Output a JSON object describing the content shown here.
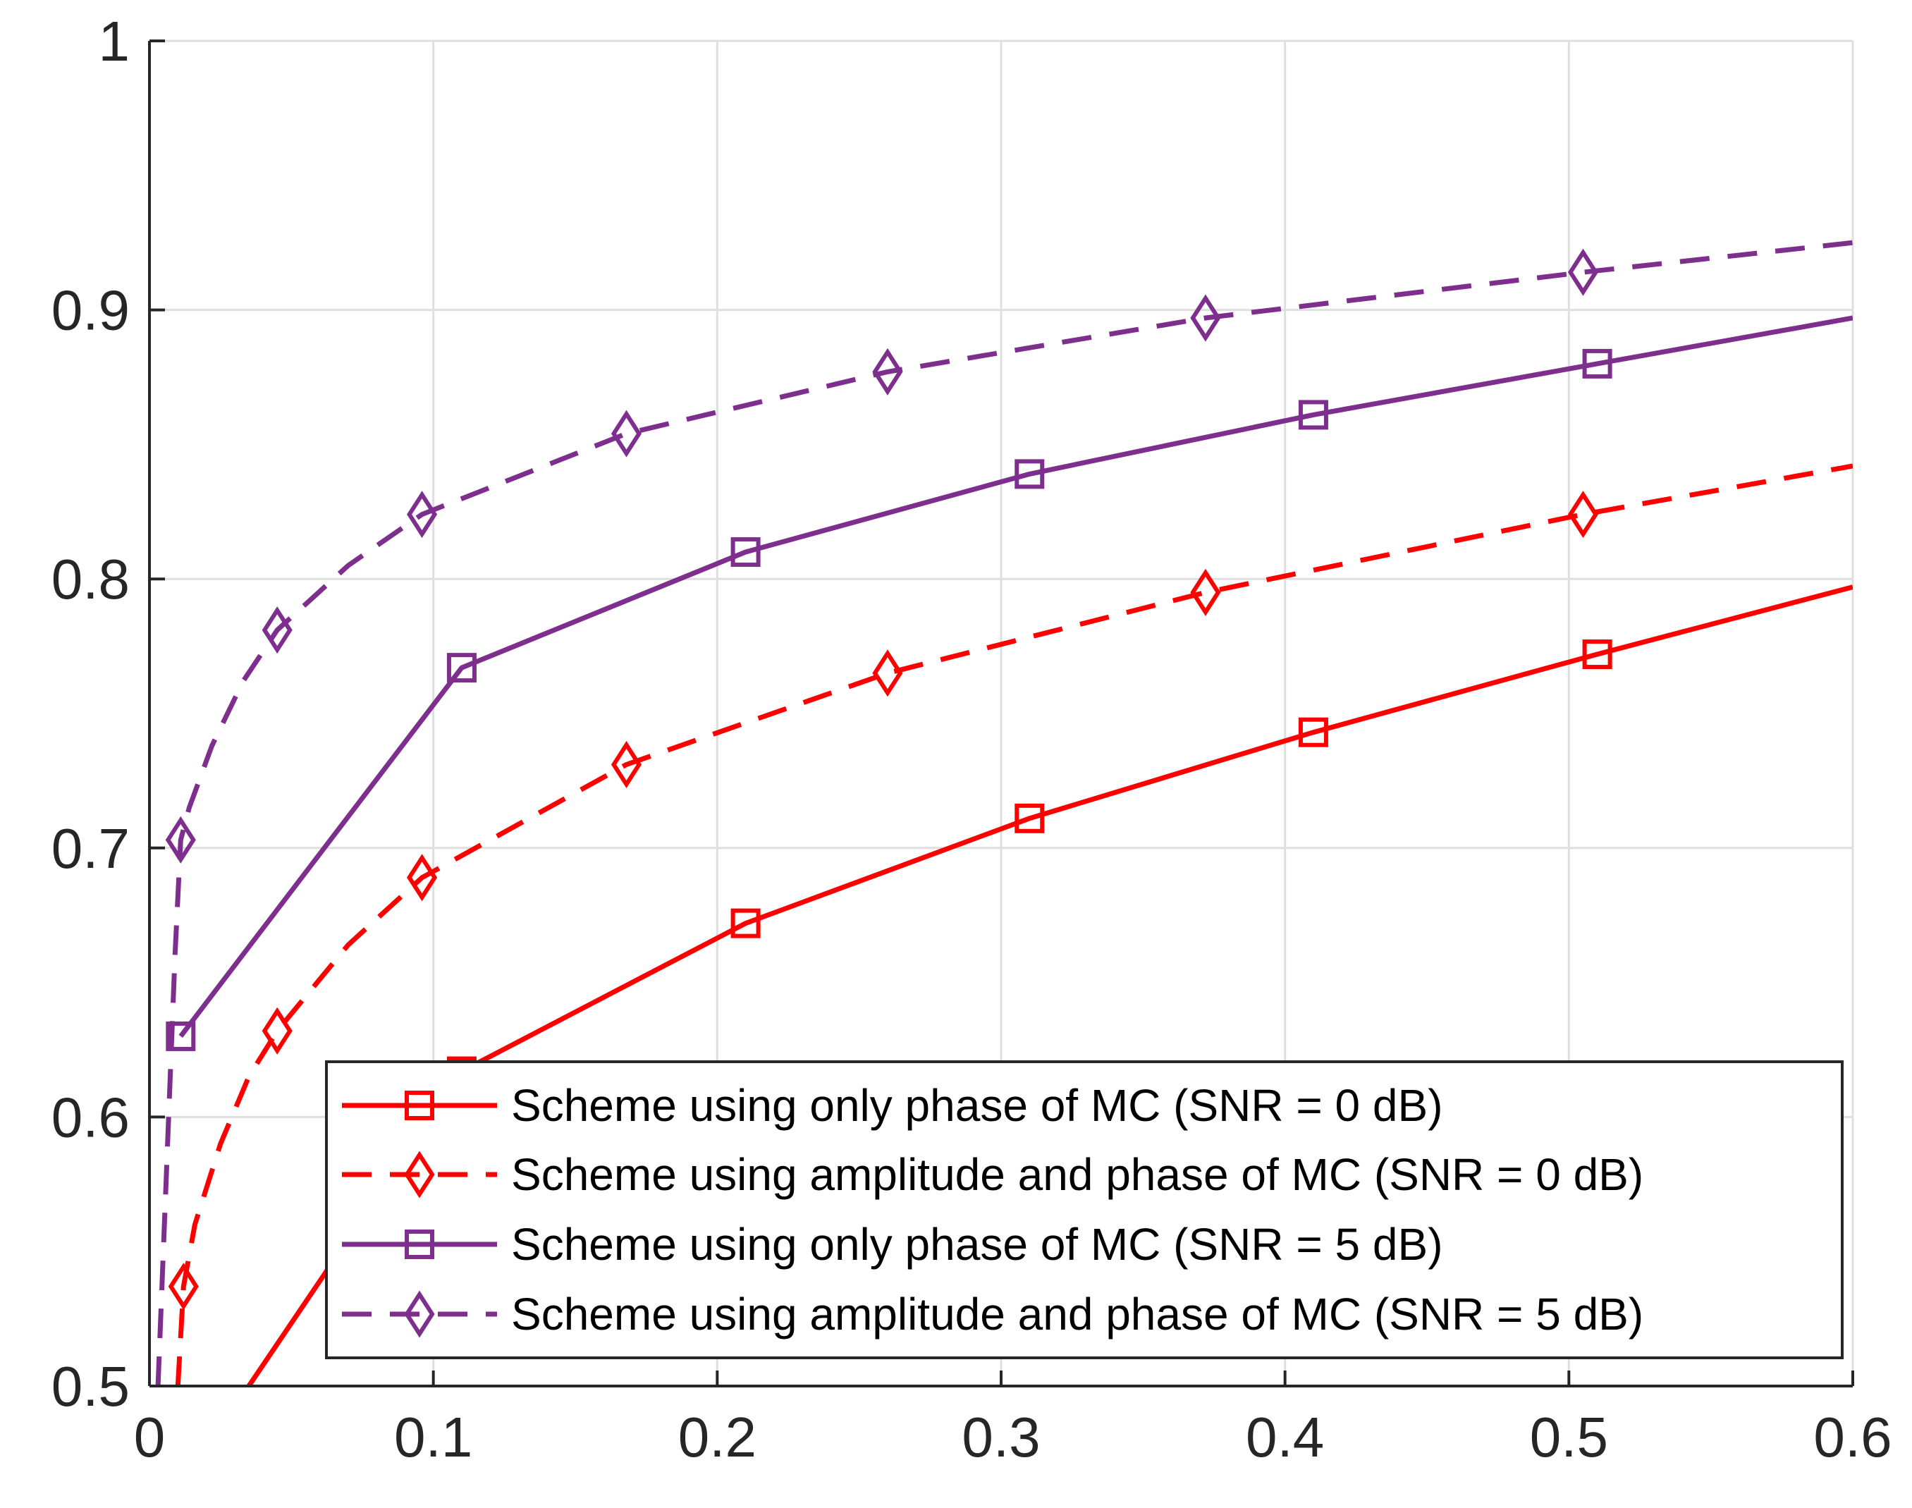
{
  "chart_data": {
    "type": "line",
    "title": "",
    "xlabel": "",
    "ylabel": "",
    "xlim": [
      0,
      0.6
    ],
    "ylim": [
      0.5,
      1
    ],
    "xticks": [
      0,
      0.1,
      0.2,
      0.3,
      0.4,
      0.5,
      0.6
    ],
    "xtick_labels": [
      "0",
      "0.1",
      "0.2",
      "0.3",
      "0.4",
      "0.5",
      "0.6"
    ],
    "yticks": [
      0.5,
      0.6,
      0.7,
      0.8,
      0.9,
      1
    ],
    "ytick_labels": [
      "0.5",
      "0.6",
      "0.7",
      "0.8",
      "0.9",
      "1"
    ],
    "grid": true,
    "legend_position": "bottom-right",
    "series": [
      {
        "name": "Scheme using only phase of MC (SNR = 0 dB)",
        "color": "#ff0000",
        "line_style": "solid",
        "marker": "square",
        "x": [
          0.035,
          0.11,
          0.21,
          0.31,
          0.41,
          0.51,
          0.6
        ],
        "y": [
          0.5,
          0.617,
          0.672,
          0.711,
          0.743,
          0.772,
          0.797
        ],
        "marker_x": [
          0.11,
          0.21,
          0.31,
          0.41,
          0.51
        ],
        "marker_y": [
          0.617,
          0.672,
          0.711,
          0.743,
          0.772
        ]
      },
      {
        "name": "Scheme using amplitude and phase of MC (SNR = 0 dB)",
        "color": "#ff0000",
        "line_style": "dashed",
        "marker": "diamond",
        "x": [
          0.01,
          0.012,
          0.016,
          0.025,
          0.035,
          0.045,
          0.07,
          0.096,
          0.168,
          0.26,
          0.372,
          0.505,
          0.6
        ],
        "y": [
          0.5,
          0.537,
          0.56,
          0.59,
          0.615,
          0.632,
          0.664,
          0.689,
          0.731,
          0.765,
          0.795,
          0.824,
          0.842
        ],
        "marker_x": [
          0.012,
          0.045,
          0.096,
          0.168,
          0.26,
          0.372,
          0.505
        ],
        "marker_y": [
          0.537,
          0.632,
          0.689,
          0.731,
          0.765,
          0.795,
          0.824
        ]
      },
      {
        "name": "Scheme using only phase of MC (SNR = 5 dB)",
        "color": "#7e2f8e",
        "line_style": "solid",
        "marker": "square",
        "x": [
          0.011,
          0.11,
          0.21,
          0.31,
          0.41,
          0.51,
          0.6
        ],
        "y": [
          0.63,
          0.767,
          0.81,
          0.839,
          0.861,
          0.88,
          0.897
        ],
        "marker_x": [
          0.011,
          0.11,
          0.21,
          0.31,
          0.41,
          0.51
        ],
        "marker_y": [
          0.63,
          0.767,
          0.81,
          0.839,
          0.861,
          0.88
        ]
      },
      {
        "name": "Scheme using amplitude and phase of MC (SNR = 5 dB)",
        "color": "#7e2f8e",
        "line_style": "dashed",
        "marker": "diamond",
        "x": [
          0.003,
          0.006,
          0.009,
          0.011,
          0.014,
          0.022,
          0.033,
          0.045,
          0.07,
          0.096,
          0.168,
          0.26,
          0.372,
          0.505,
          0.6
        ],
        "y": [
          0.5,
          0.58,
          0.66,
          0.703,
          0.715,
          0.738,
          0.762,
          0.781,
          0.805,
          0.824,
          0.854,
          0.877,
          0.897,
          0.914,
          0.925
        ],
        "marker_x": [
          0.011,
          0.045,
          0.096,
          0.168,
          0.26,
          0.372,
          0.505
        ],
        "marker_y": [
          0.703,
          0.781,
          0.824,
          0.854,
          0.877,
          0.897,
          0.914
        ]
      }
    ]
  }
}
